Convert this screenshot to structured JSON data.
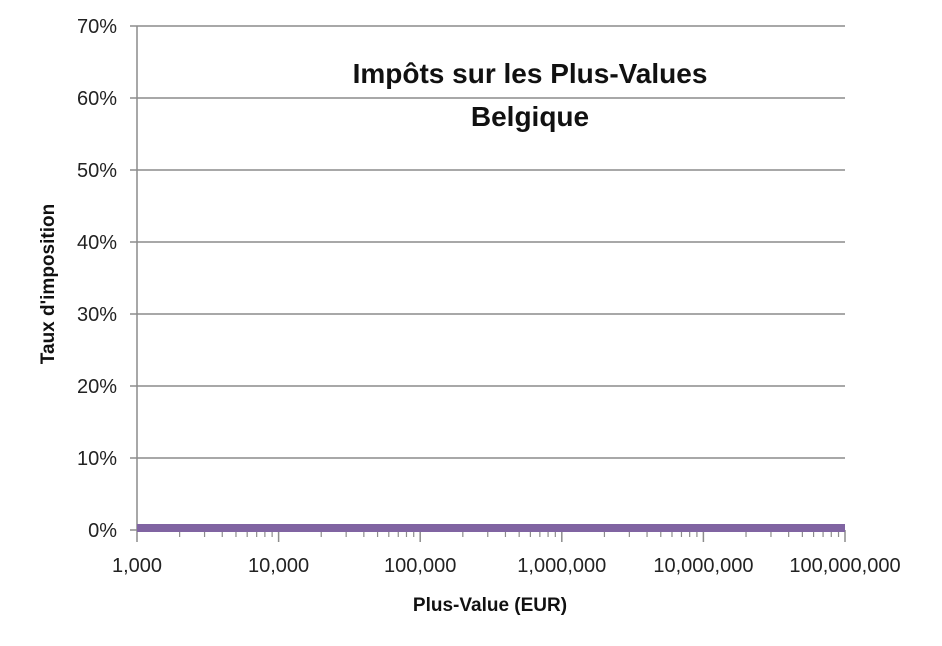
{
  "chart_data": {
    "type": "line",
    "title": "Impôts sur les Plus-Values",
    "subtitle": "Belgique",
    "xlabel": "Plus-Value (EUR)",
    "ylabel": "Taux d'imposition",
    "x_scale": "log",
    "xlim": [
      1000,
      100000000
    ],
    "ylim": [
      0,
      0.7
    ],
    "x_ticks": [
      1000,
      10000,
      100000,
      1000000,
      10000000,
      100000000
    ],
    "x_tick_labels": [
      "1,000",
      "10,000",
      "100,000",
      "1,000,000",
      "10,000,000",
      "100,000,000"
    ],
    "y_ticks": [
      0,
      0.1,
      0.2,
      0.3,
      0.4,
      0.5,
      0.6,
      0.7
    ],
    "y_tick_labels": [
      "0%",
      "10%",
      "20%",
      "30%",
      "40%",
      "50%",
      "60%",
      "70%"
    ],
    "grid": true,
    "legend": "none",
    "series": [
      {
        "color": "#8064a2",
        "x": [
          1000,
          10000,
          100000,
          1000000,
          10000000,
          100000000
        ],
        "y": [
          0,
          0,
          0,
          0,
          0,
          0
        ]
      }
    ]
  },
  "colors": {
    "gridline": "#8c8c8c",
    "axis": "#8c8c8c",
    "series_line": "#8064a2"
  }
}
